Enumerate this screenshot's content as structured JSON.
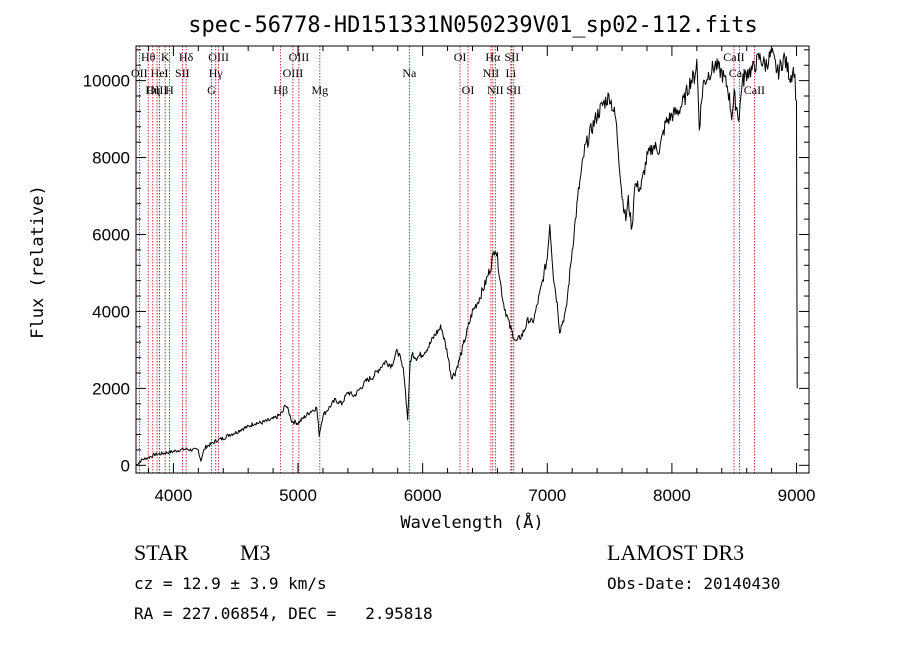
{
  "chart_data": {
    "type": "line",
    "title": "spec-56778-HD151331N050239V01_sp02-112.fits",
    "xlabel": "Wavelength (Å)",
    "ylabel": "Flux (relative)",
    "xlim": [
      3700,
      9100
    ],
    "ylim": [
      -200,
      10900
    ],
    "xticks": [
      4000,
      5000,
      6000,
      7000,
      8000,
      9000
    ],
    "yticks": [
      0,
      2000,
      4000,
      6000,
      8000,
      10000
    ],
    "series": [
      {
        "name": "flux",
        "x": [
          3700,
          3750,
          3800,
          3850,
          3900,
          3950,
          4000,
          4050,
          4100,
          4150,
          4200,
          4220,
          4240,
          4260,
          4300,
          4350,
          4400,
          4450,
          4500,
          4550,
          4600,
          4650,
          4700,
          4750,
          4800,
          4850,
          4880,
          4900,
          4930,
          4950,
          5000,
          5050,
          5100,
          5150,
          5170,
          5200,
          5250,
          5300,
          5350,
          5400,
          5450,
          5500,
          5550,
          5600,
          5650,
          5700,
          5750,
          5800,
          5850,
          5880,
          5900,
          5920,
          5950,
          6000,
          6050,
          6100,
          6150,
          6200,
          6230,
          6260,
          6300,
          6350,
          6400,
          6450,
          6500,
          6550,
          6580,
          6600,
          6630,
          6650,
          6700,
          6750,
          6800,
          6850,
          6880,
          6900,
          6950,
          7000,
          7020,
          7050,
          7080,
          7100,
          7150,
          7200,
          7250,
          7300,
          7350,
          7400,
          7450,
          7500,
          7550,
          7600,
          7630,
          7650,
          7680,
          7700,
          7750,
          7800,
          7850,
          7900,
          7950,
          8000,
          8050,
          8100,
          8150,
          8180,
          8200,
          8220,
          8250,
          8300,
          8350,
          8400,
          8450,
          8480,
          8500,
          8540,
          8560,
          8600,
          8650,
          8700,
          8750,
          8800,
          8850,
          8900,
          8950,
          8980,
          9000,
          9005
        ],
        "y": [
          0,
          150,
          200,
          280,
          300,
          330,
          360,
          400,
          420,
          400,
          400,
          120,
          350,
          480,
          550,
          650,
          700,
          800,
          850,
          950,
          1000,
          1100,
          1100,
          1150,
          1200,
          1300,
          1400,
          1600,
          1350,
          1150,
          1100,
          1250,
          1400,
          1500,
          800,
          1300,
          1500,
          1700,
          1600,
          1900,
          1800,
          2000,
          2200,
          2300,
          2500,
          2700,
          2600,
          3000,
          2400,
          1200,
          2700,
          2900,
          2800,
          2900,
          3100,
          3400,
          3600,
          2900,
          2300,
          2400,
          2800,
          3400,
          4000,
          4300,
          4700,
          5200,
          5700,
          5400,
          4600,
          4200,
          3600,
          3200,
          3400,
          3800,
          3700,
          3900,
          4600,
          5400,
          6300,
          4900,
          4200,
          3500,
          4000,
          5600,
          7100,
          8200,
          8700,
          9100,
          9400,
          9600,
          9000,
          7000,
          6400,
          6900,
          6100,
          7300,
          7200,
          8000,
          8300,
          8200,
          8900,
          9100,
          9200,
          9500,
          10000,
          10100,
          10500,
          8800,
          9900,
          10200,
          10400,
          10200,
          9800,
          9100,
          9600,
          9000,
          9900,
          10200,
          10300,
          10600,
          10400,
          10700,
          10200,
          10600,
          10100,
          10300,
          9400,
          2000
        ]
      }
    ],
    "spectral_lines": [
      {
        "label": "Hθ",
        "x": 3798,
        "row": 0
      },
      {
        "label": "K",
        "x": 3934,
        "row": 0
      },
      {
        "label": "Hδ",
        "x": 4102,
        "row": 0
      },
      {
        "label": "OIII",
        "x": 4363,
        "row": 0
      },
      {
        "label": "OIII",
        "x": 5007,
        "row": 0
      },
      {
        "label": "OI",
        "x": 6300,
        "row": 0
      },
      {
        "label": "Hα",
        "x": 6563,
        "row": 0
      },
      {
        "label": "SII",
        "x": 6716,
        "row": 0
      },
      {
        "label": "CaII",
        "x": 8498,
        "row": 0
      },
      {
        "label": "OII",
        "x": 3727,
        "row": 1
      },
      {
        "label": "HeI",
        "x": 3889,
        "row": 1
      },
      {
        "label": "SII",
        "x": 4072,
        "row": 1
      },
      {
        "label": "Hγ",
        "x": 4340,
        "row": 1
      },
      {
        "label": "OIII",
        "x": 4959,
        "row": 1
      },
      {
        "label": "Na",
        "x": 5893,
        "row": 1
      },
      {
        "label": "NII",
        "x": 6548,
        "row": 1
      },
      {
        "label": "Li",
        "x": 6708,
        "row": 1
      },
      {
        "label": "CaII",
        "x": 8542,
        "row": 1
      },
      {
        "label": "OIII",
        "x": 3869,
        "row": 2
      },
      {
        "label": "Hη",
        "x": 3835,
        "row": 2
      },
      {
        "label": "H",
        "x": 3968,
        "row": 2
      },
      {
        "label": "G",
        "x": 4305,
        "row": 2
      },
      {
        "label": "Hβ",
        "x": 4861,
        "row": 2
      },
      {
        "label": "Mg",
        "x": 5175,
        "row": 2
      },
      {
        "label": "OI",
        "x": 6364,
        "row": 2
      },
      {
        "label": "NII",
        "x": 6583,
        "row": 2
      },
      {
        "label": "SII",
        "x": 6731,
        "row": 2
      },
      {
        "label": "CaII",
        "x": 8662,
        "row": 2
      }
    ]
  },
  "info": {
    "object_class": "STAR",
    "subclass": "M3",
    "survey": "LAMOST DR3",
    "redshift": "cz = 12.9 ± 3.9 km/s",
    "obs_date": "Obs-Date: 20140430",
    "coords": "RA = 227.06854, DEC =   2.95818"
  },
  "colors": {
    "line_marker": "#b00000",
    "axes": "#000000",
    "spectrum": "#000000"
  }
}
